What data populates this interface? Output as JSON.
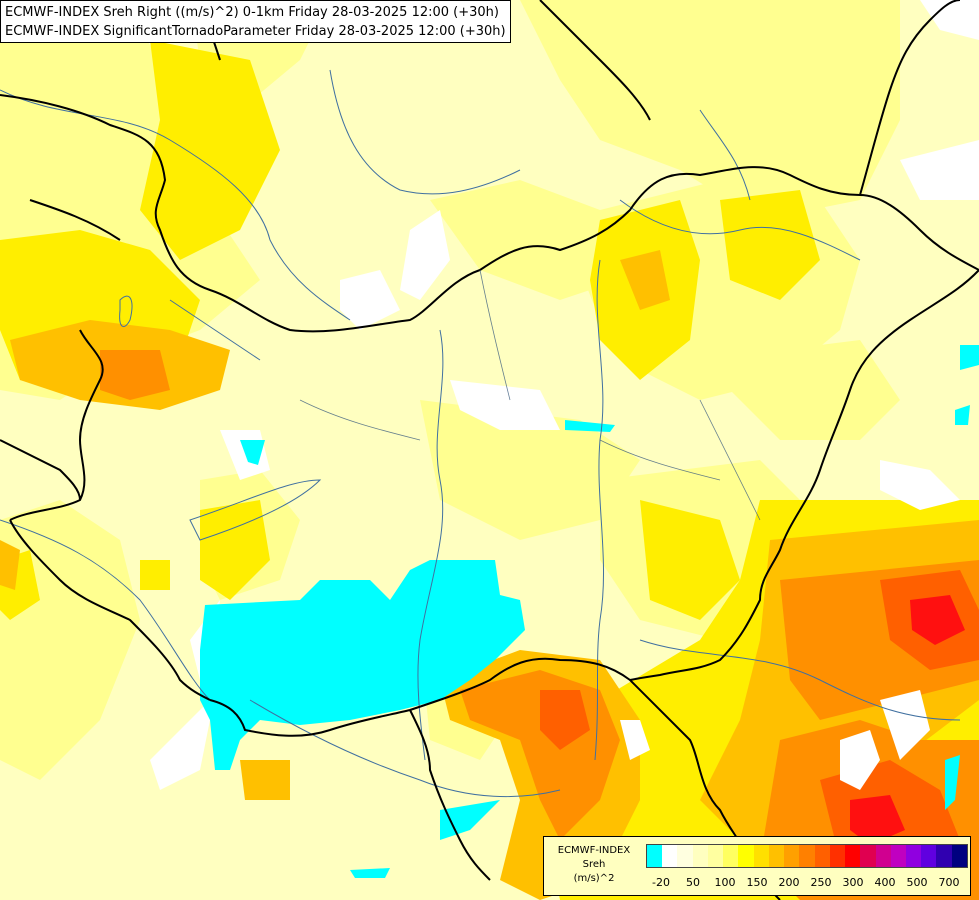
{
  "header": {
    "line1": "ECMWF-INDEX Sreh Right ((m/s)^2) 0-1km Friday 28-03-2025 12:00 (+30h)",
    "line2": "ECMWF-INDEX SignificantTornadoParameter Friday 28-03-2025 12:00 (+30h)"
  },
  "legend": {
    "title_line1": "ECMWF-INDEX",
    "title_line2": "Sreh",
    "title_line3": "(m/s)^2",
    "colors": [
      "#00ffff",
      "#ffffff",
      "#ffffe0",
      "#ffffc0",
      "#ffffa0",
      "#ffff60",
      "#ffff00",
      "#ffe000",
      "#ffc000",
      "#ffa000",
      "#ff8000",
      "#ff6000",
      "#ff3000",
      "#ff0000",
      "#e00050",
      "#d00090",
      "#c000c0",
      "#9000e0",
      "#6000e0",
      "#3000b0",
      "#000080"
    ],
    "tick_labels": [
      "-20",
      "50",
      "100",
      "150",
      "200",
      "250",
      "300",
      "400",
      "500",
      "700"
    ]
  },
  "map": {
    "colors": {
      "background": "#ffffc0",
      "light_yellow": "#ffff80",
      "yellow": "#ffee00",
      "orange_light": "#ffc000",
      "orange": "#ff9000",
      "orange_dark": "#ff6000",
      "red": "#ff1010",
      "cyan": "#00ffff",
      "white": "#ffffff",
      "border": "#000000",
      "river": "#4070a0"
    }
  }
}
